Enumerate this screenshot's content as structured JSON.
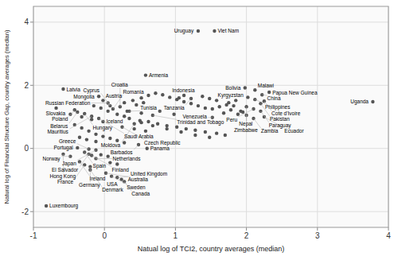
{
  "chart_data": {
    "type": "scatter",
    "xlabel": "Natual log of TCI2, country averages (median)",
    "ylabel": "Natural log of Financial Structure Gap, country averages (median)",
    "xlim": [
      -1,
      4
    ],
    "ylim": [
      -2.5,
      4.5
    ],
    "xticks": [
      -1,
      0,
      1,
      2,
      3,
      4
    ],
    "yticks": [
      -2,
      0,
      2,
      4
    ],
    "grid": true,
    "color": "#555555",
    "x": [
      0.28,
      0.4,
      0.52,
      0.62,
      0.72,
      0.82,
      0.92,
      1.02,
      1.12,
      1.22,
      1.32,
      1.42,
      1.52,
      1.62,
      1.72,
      1.82,
      1.92,
      0.35,
      0.5,
      0.62,
      0.75,
      0.88,
      1.02,
      1.15,
      1.28,
      1.42,
      1.58,
      1.7,
      0.52,
      0.68,
      0.88,
      1.08,
      1.28,
      1.48,
      0.78,
      0.98,
      1.68,
      1.78,
      0.08,
      0.18,
      -0.05,
      0.05,
      0.32,
      0.52,
      -0.48,
      -0.32,
      -0.18,
      -0.42,
      -0.32,
      -0.22,
      -0.12,
      -0.02,
      0.08,
      0.18,
      0.28,
      1.05,
      0.45,
      0.55,
      1.38,
      1.48,
      1.58,
      1.75,
      1.85,
      -0.15,
      -0.05,
      0.05,
      0.18,
      0.28,
      0.42,
      0.58,
      -0.35,
      -0.25,
      -0.12,
      1.88,
      1.95,
      1.32,
      1.55,
      0.58,
      -0.58,
      -0.08,
      -0.02,
      0.05,
      0.08,
      -0.68,
      -0.42,
      -0.38,
      -0.28,
      -0.18,
      -0.08,
      -0.02,
      0.12,
      0.22,
      0.35,
      0.68,
      0.25,
      0.42,
      0.48,
      0.6,
      -0.38,
      -0.22,
      -0.12,
      -0.28,
      -0.22,
      -0.18,
      -0.58,
      -0.48,
      -0.12,
      -0.35,
      -0.28,
      -0.2,
      -0.2,
      0.02,
      0.1,
      0.18,
      0.24,
      0.28,
      -0.82,
      1.98,
      2.12,
      2.22,
      2.32,
      2.02,
      2.12,
      2.25,
      1.12,
      1.22,
      2.2,
      2.0,
      2.1,
      2.2,
      2.0,
      2.1,
      2.25,
      3.78,
      1.52
    ],
    "values": [
      1.45,
      1.52,
      1.6,
      1.68,
      1.75,
      1.7,
      1.62,
      1.55,
      1.48,
      1.42,
      1.35,
      1.28,
      1.25,
      1.32,
      1.38,
      1.35,
      1.18,
      0.95,
      0.88,
      0.85,
      0.78,
      0.72,
      0.68,
      0.62,
      0.58,
      0.52,
      0.48,
      0.42,
      0.82,
      0.72,
      0.62,
      0.52,
      0.42,
      0.35,
      1.18,
      1.08,
      1.12,
      1.22,
      -0.45,
      -0.5,
      -0.2,
      -0.25,
      1.18,
      1.12,
      1.08,
      1.0,
      0.92,
      0.75,
      0.65,
      0.55,
      0.45,
      0.38,
      0.32,
      0.25,
      0.18,
      1.6,
      1.38,
      1.45,
      1.65,
      1.58,
      1.52,
      1.45,
      1.52,
      1.35,
      1.28,
      1.18,
      1.08,
      1.02,
      0.62,
      0.55,
      0.35,
      0.28,
      0.22,
      1.08,
      1.15,
      3.72,
      3.72,
      2.32,
      1.88,
      1.65,
      1.52,
      1.44,
      1.35,
      1.28,
      1.22,
      1.15,
      1.1,
      1.02,
      0.95,
      0.85,
      1.25,
      1.32,
      1.18,
      1.05,
      0.68,
      0.78,
      0.12,
      0.0,
      0.02,
      -0.02,
      -0.05,
      -0.12,
      -0.18,
      -0.22,
      -0.18,
      -0.25,
      -0.32,
      -0.42,
      -0.52,
      -0.58,
      -0.68,
      -0.78,
      -0.88,
      -0.92,
      -0.98,
      -1.05,
      -1.82,
      1.92,
      1.85,
      1.7,
      1.78,
      1.62,
      1.55,
      1.5,
      1.68,
      1.58,
      1.42,
      1.32,
      1.25,
      1.18,
      1.05,
      0.95,
      1.0,
      1.48,
      0.98
    ],
    "labels": [
      null,
      null,
      null,
      null,
      null,
      null,
      null,
      null,
      null,
      null,
      null,
      null,
      null,
      null,
      null,
      null,
      null,
      null,
      null,
      null,
      null,
      null,
      null,
      null,
      null,
      null,
      null,
      null,
      null,
      null,
      null,
      null,
      null,
      null,
      null,
      null,
      null,
      null,
      null,
      null,
      null,
      null,
      null,
      null,
      null,
      null,
      null,
      null,
      null,
      null,
      null,
      null,
      null,
      null,
      null,
      null,
      null,
      null,
      null,
      null,
      null,
      null,
      null,
      null,
      null,
      null,
      null,
      null,
      null,
      null,
      null,
      null,
      null,
      null,
      null,
      "Uruguay",
      "Viet Nam",
      "Armenia",
      "Latvia",
      "Mongolia",
      "Austria",
      "Russian Federation",
      "Cyprus",
      "Slovakia",
      "Poland",
      "Belarus",
      "Hungary",
      "Mauritius",
      "Saudi Arabia",
      "Iceland",
      "Romania",
      "Croatia",
      "Tunisia",
      "Trinidad and Tobago",
      "Czech Republic",
      "Moldova",
      "Barbados",
      "Panama",
      "Portugal",
      "Greece",
      "Japan",
      "Spain",
      "El Salvador",
      "Finland",
      "Hong Kong",
      "Norway",
      "Netherlands",
      "Ireland",
      "France",
      "Germany",
      "Denmark",
      "Australia",
      "Sweden",
      "United Kingdom",
      "USA",
      "Canada",
      "Luxembourg",
      "Bolivia",
      "Malawi",
      "China",
      "Papua New Guinea",
      "Kyrgyzstan",
      "Philippines",
      "Cote d'Ivoire",
      "Indonesia",
      "Tanzania",
      "Pakistan",
      "Nepal",
      "Peru",
      "Paraguay",
      "Zimbabwe",
      "Zambia",
      "Ecuador",
      "Uganda",
      "Venezuela"
    ]
  }
}
